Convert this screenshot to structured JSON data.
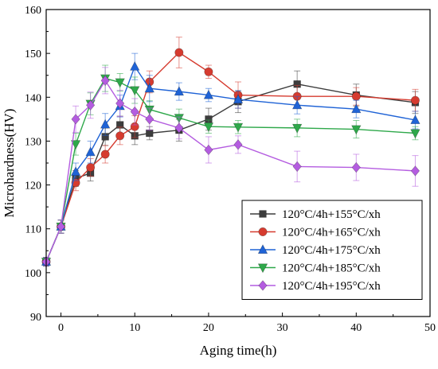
{
  "chart_data": {
    "type": "line",
    "title": "",
    "xlabel": "Aging time(h)",
    "ylabel": "Microhardness(HV)",
    "xlim": [
      -2,
      50
    ],
    "ylim": [
      90,
      160
    ],
    "xticks": [
      "0",
      "10",
      "20",
      "30",
      "40",
      "50"
    ],
    "yticks": [
      "90",
      "100",
      "110",
      "120",
      "130",
      "140",
      "150",
      "160"
    ],
    "grid": false,
    "legend_position": "bottom-right",
    "series": [
      {
        "name": "120°C/4h+155°C/xh",
        "color": "#3d3d3d",
        "marker": "square",
        "points": [
          {
            "x": -2,
            "y": 102.5,
            "err": 1.0
          },
          {
            "x": 0,
            "y": 110.5,
            "err": 1.5
          },
          {
            "x": 2,
            "y": 121.5,
            "err": 1.8
          },
          {
            "x": 4,
            "y": 122.7,
            "err": 1.8
          },
          {
            "x": 6,
            "y": 131.0,
            "err": 2.0
          },
          {
            "x": 8,
            "y": 133.7,
            "err": 2.0
          },
          {
            "x": 10,
            "y": 131.2,
            "err": 2.0
          },
          {
            "x": 12,
            "y": 131.8,
            "err": 1.5
          },
          {
            "x": 16,
            "y": 132.5,
            "err": 2.5
          },
          {
            "x": 20,
            "y": 135.0,
            "err": 2.5
          },
          {
            "x": 24,
            "y": 139.0,
            "err": 2.5
          },
          {
            "x": 32,
            "y": 143.0,
            "err": 3.0
          },
          {
            "x": 40,
            "y": 140.5,
            "err": 2.5
          },
          {
            "x": 48,
            "y": 138.8,
            "err": 2.5
          }
        ]
      },
      {
        "name": "120°C/4h+165°C/xh",
        "color": "#d63b2f",
        "marker": "circle",
        "points": [
          {
            "x": -2,
            "y": 102.5,
            "err": 1.0
          },
          {
            "x": 0,
            "y": 110.5,
            "err": 1.5
          },
          {
            "x": 2,
            "y": 120.5,
            "err": 1.8
          },
          {
            "x": 4,
            "y": 124.0,
            "err": 2.0
          },
          {
            "x": 6,
            "y": 127.0,
            "err": 2.0
          },
          {
            "x": 8,
            "y": 131.2,
            "err": 2.0
          },
          {
            "x": 10,
            "y": 133.3,
            "err": 2.5
          },
          {
            "x": 12,
            "y": 143.5,
            "err": 2.5
          },
          {
            "x": 16,
            "y": 150.2,
            "err": 3.5
          },
          {
            "x": 20,
            "y": 145.8,
            "err": 1.5
          },
          {
            "x": 24,
            "y": 140.5,
            "err": 3.0
          },
          {
            "x": 32,
            "y": 140.2,
            "err": 2.5
          },
          {
            "x": 40,
            "y": 140.2,
            "err": 2.0
          },
          {
            "x": 48,
            "y": 139.3,
            "err": 2.5
          }
        ]
      },
      {
        "name": "120°C/4h+175°C/xh",
        "color": "#1f63d6",
        "marker": "triangle-up",
        "points": [
          {
            "x": -2,
            "y": 102.5,
            "err": 1.0
          },
          {
            "x": 0,
            "y": 110.5,
            "err": 1.5
          },
          {
            "x": 2,
            "y": 123.0,
            "err": 2.0
          },
          {
            "x": 4,
            "y": 127.5,
            "err": 2.5
          },
          {
            "x": 6,
            "y": 133.8,
            "err": 2.5
          },
          {
            "x": 8,
            "y": 138.0,
            "err": 2.5
          },
          {
            "x": 10,
            "y": 147.0,
            "err": 3.0
          },
          {
            "x": 12,
            "y": 142.0,
            "err": 3.0
          },
          {
            "x": 16,
            "y": 141.3,
            "err": 2.0
          },
          {
            "x": 20,
            "y": 140.5,
            "err": 1.5
          },
          {
            "x": 24,
            "y": 139.5,
            "err": 2.0
          },
          {
            "x": 32,
            "y": 138.2,
            "err": 2.0
          },
          {
            "x": 40,
            "y": 137.3,
            "err": 2.0
          },
          {
            "x": 48,
            "y": 134.8,
            "err": 2.0
          }
        ]
      },
      {
        "name": "120°C/4h+185°C/xh",
        "color": "#2ea84a",
        "marker": "triangle-down",
        "points": [
          {
            "x": -2,
            "y": 102.5,
            "err": 1.0
          },
          {
            "x": 0,
            "y": 110.5,
            "err": 1.5
          },
          {
            "x": 2,
            "y": 129.3,
            "err": 2.5
          },
          {
            "x": 4,
            "y": 138.5,
            "err": 2.5
          },
          {
            "x": 6,
            "y": 144.3,
            "err": 3.0
          },
          {
            "x": 8,
            "y": 143.4,
            "err": 2.0
          },
          {
            "x": 10,
            "y": 141.6,
            "err": 3.0
          },
          {
            "x": 12,
            "y": 137.2,
            "err": 2.0
          },
          {
            "x": 16,
            "y": 135.3,
            "err": 2.0
          },
          {
            "x": 20,
            "y": 133.3,
            "err": 1.5
          },
          {
            "x": 24,
            "y": 133.2,
            "err": 1.5
          },
          {
            "x": 32,
            "y": 133.0,
            "err": 2.0
          },
          {
            "x": 40,
            "y": 132.7,
            "err": 2.0
          },
          {
            "x": 48,
            "y": 131.8,
            "err": 1.5
          }
        ]
      },
      {
        "name": "120°C/4h+195°C/xh",
        "color": "#b45ce0",
        "marker": "diamond",
        "points": [
          {
            "x": -2,
            "y": 102.5,
            "err": 1.0
          },
          {
            "x": 0,
            "y": 110.5,
            "err": 1.5
          },
          {
            "x": 2,
            "y": 135.0,
            "err": 3.0
          },
          {
            "x": 4,
            "y": 138.2,
            "err": 3.0
          },
          {
            "x": 6,
            "y": 143.8,
            "err": 3.0
          },
          {
            "x": 8,
            "y": 138.6,
            "err": 3.0
          },
          {
            "x": 10,
            "y": 136.7,
            "err": 3.0
          },
          {
            "x": 12,
            "y": 135.0,
            "err": 2.5
          },
          {
            "x": 16,
            "y": 133.0,
            "err": 2.5
          },
          {
            "x": 20,
            "y": 128.0,
            "err": 3.0
          },
          {
            "x": 24,
            "y": 129.2,
            "err": 2.0
          },
          {
            "x": 32,
            "y": 124.2,
            "err": 3.5
          },
          {
            "x": 40,
            "y": 124.0,
            "err": 3.0
          },
          {
            "x": 48,
            "y": 123.2,
            "err": 3.5
          }
        ]
      }
    ]
  }
}
